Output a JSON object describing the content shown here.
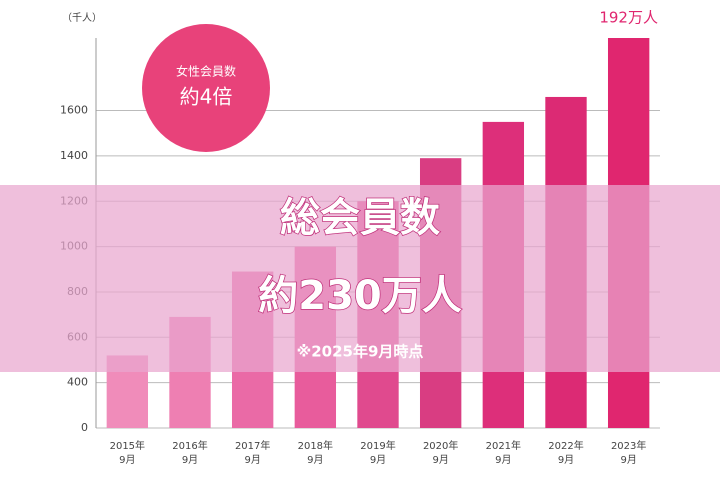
{
  "chart_data": {
    "type": "bar",
    "unit": "（千人）",
    "categories": [
      "2015年\n9月",
      "2016年\n9月",
      "2017年\n9月",
      "2018年\n9月",
      "2019年\n9月",
      "2020年\n9月",
      "2021年\n9月",
      "2022年\n9月",
      "2023年\n9月"
    ],
    "values": [
      520,
      690,
      890,
      1000,
      1200,
      1390,
      1550,
      1660,
      1920
    ],
    "value_labels": [
      null,
      null,
      null,
      null,
      null,
      null,
      null,
      null,
      "192万人"
    ],
    "colors": [
      "#f08cba",
      "#ee7fb2",
      "#ea6aa6",
      "#e85c9c",
      "#e04a8e",
      "#d93d82",
      "#dd2f7a",
      "#dc2a74",
      "#e0266f"
    ],
    "ylim": [
      200,
      1920
    ],
    "yticks": [
      {
        "value": 200,
        "label": "0"
      },
      400,
      600,
      800,
      1000,
      1200,
      1400,
      1600
    ],
    "grid": true,
    "badge": {
      "line1": "女性会員数",
      "line2": "約4倍"
    },
    "overlay": {
      "title": "総会員数",
      "value": "約230万人",
      "note": "※2025年9月時点"
    }
  }
}
